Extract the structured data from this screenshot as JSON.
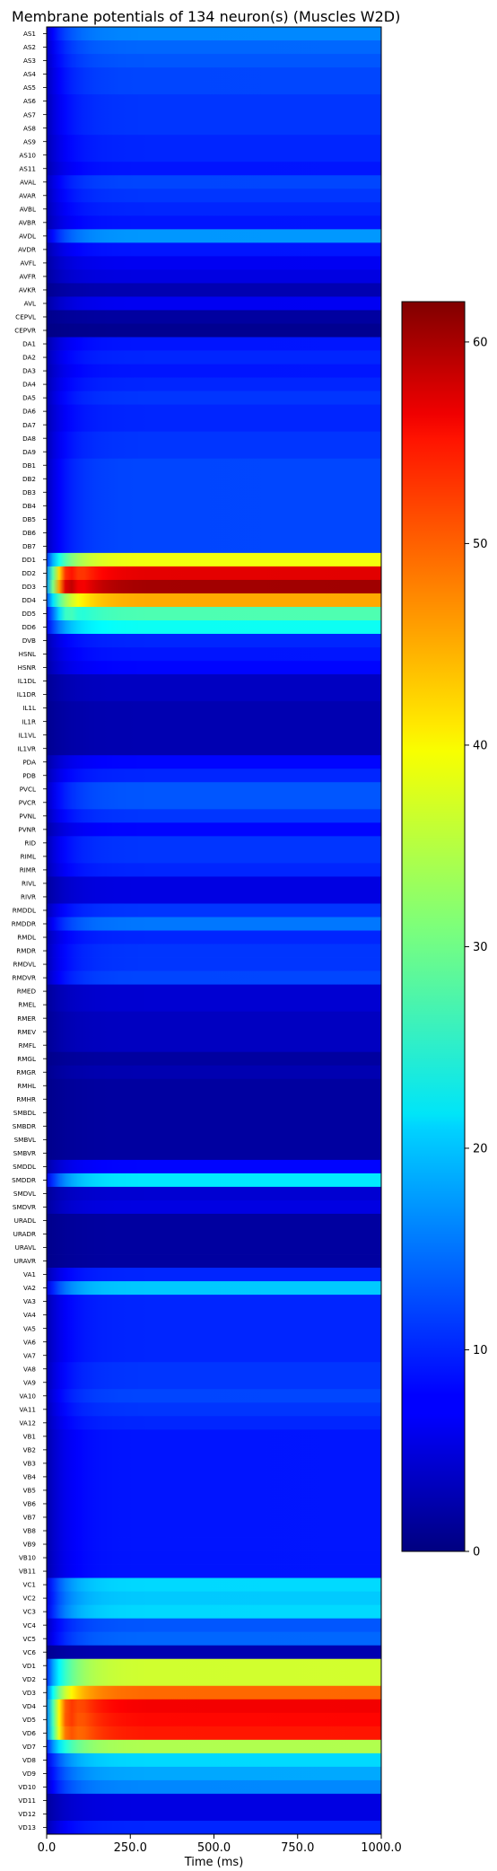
{
  "chart_data": {
    "type": "heatmap",
    "title": "Membrane potentials of 134 neuron(s) (Muscles W2D)",
    "xlabel": "Time (ms)",
    "ylabel": "",
    "xlim": [
      0,
      1000
    ],
    "x_ticks": [
      "0.0",
      "250.0",
      "500.0",
      "750.0",
      "1000.0"
    ],
    "colormap": "jet",
    "colorbar": {
      "min": 0,
      "max": 62,
      "ticks": [
        "0",
        "10",
        "20",
        "30",
        "40",
        "50",
        "60"
      ],
      "placement": "right"
    },
    "neurons": [
      "AS1",
      "AS2",
      "AS3",
      "AS4",
      "AS5",
      "AS6",
      "AS7",
      "AS8",
      "AS9",
      "AS10",
      "AS11",
      "AVAL",
      "AVAR",
      "AVBL",
      "AVBR",
      "AVDL",
      "AVDR",
      "AVFL",
      "AVFR",
      "AVKR",
      "AVL",
      "CEPVL",
      "CEPVR",
      "DA1",
      "DA2",
      "DA3",
      "DA4",
      "DA5",
      "DA6",
      "DA7",
      "DA8",
      "DA9",
      "DB1",
      "DB2",
      "DB3",
      "DB4",
      "DB5",
      "DB6",
      "DB7",
      "DD1",
      "DD2",
      "DD3",
      "DD4",
      "DD5",
      "DD6",
      "DVB",
      "HSNL",
      "HSNR",
      "IL1DL",
      "IL1DR",
      "IL1L",
      "IL1R",
      "IL1VL",
      "IL1VR",
      "PDA",
      "PDB",
      "PVCL",
      "PVCR",
      "PVNL",
      "PVNR",
      "RID",
      "RIML",
      "RIMR",
      "RIVL",
      "RIVR",
      "RMDDL",
      "RMDDR",
      "RMDL",
      "RMDR",
      "RMDVL",
      "RMDVR",
      "RMED",
      "RMEL",
      "RMER",
      "RMEV",
      "RMFL",
      "RMGL",
      "RMGR",
      "RMHL",
      "RMHR",
      "SMBDL",
      "SMBDR",
      "SMBVL",
      "SMBVR",
      "SMDDL",
      "SMDDR",
      "SMDVL",
      "SMDVR",
      "URADL",
      "URADR",
      "URAVL",
      "URAVR",
      "VA1",
      "VA2",
      "VA3",
      "VA4",
      "VA5",
      "VA6",
      "VA7",
      "VA8",
      "VA9",
      "VA10",
      "VA11",
      "VA12",
      "VB1",
      "VB2",
      "VB3",
      "VB4",
      "VB5",
      "VB6",
      "VB7",
      "VB8",
      "VB9",
      "VB10",
      "VB11",
      "VC1",
      "VC2",
      "VC3",
      "VC4",
      "VC5",
      "VC6",
      "VD1",
      "VD2",
      "VD3",
      "VD4",
      "VD5",
      "VD6",
      "VD7",
      "VD8",
      "VD9",
      "VD10",
      "VD11",
      "VD12",
      "VD13"
    ],
    "steady_values": [
      16,
      14,
      13,
      12,
      12,
      11,
      11,
      11,
      10,
      10,
      9,
      12,
      11,
      10,
      9,
      17,
      9,
      7,
      6,
      3,
      7,
      2,
      1,
      9,
      10,
      9,
      10,
      11,
      10,
      10,
      11,
      11,
      12,
      12,
      12,
      12,
      12,
      12,
      12,
      38,
      56,
      60,
      44,
      28,
      24,
      10,
      9,
      8,
      4,
      4,
      3,
      3,
      3,
      3,
      8,
      10,
      13,
      13,
      11,
      8,
      11,
      11,
      10,
      6,
      6,
      11,
      15,
      10,
      11,
      11,
      12,
      5,
      5,
      4,
      4,
      4,
      2,
      3,
      2,
      2,
      2,
      2,
      2,
      2,
      8,
      22,
      5,
      6,
      2,
      2,
      2,
      2,
      10,
      20,
      10,
      10,
      10,
      10,
      10,
      11,
      11,
      12,
      11,
      10,
      9,
      9,
      9,
      9,
      9,
      9,
      9,
      9,
      9,
      9,
      9,
      21,
      20,
      21,
      13,
      14,
      3,
      36,
      36,
      48,
      55,
      54,
      53,
      34,
      21,
      18,
      16,
      6,
      6,
      10
    ],
    "transient_peaks": [
      0,
      0,
      0,
      0,
      0,
      0,
      0,
      0,
      0,
      0,
      0,
      0,
      0,
      0,
      0,
      0,
      0,
      0,
      0,
      0,
      0,
      0,
      0,
      0,
      0,
      0,
      0,
      0,
      0,
      0,
      0,
      0,
      0,
      0,
      0,
      0,
      0,
      0,
      0,
      0,
      10,
      12,
      0,
      6,
      0,
      0,
      0,
      0,
      0,
      0,
      0,
      0,
      0,
      0,
      0,
      0,
      0,
      0,
      0,
      0,
      0,
      0,
      0,
      0,
      0,
      0,
      0,
      0,
      0,
      0,
      0,
      0,
      0,
      0,
      0,
      0,
      0,
      0,
      0,
      0,
      0,
      0,
      0,
      0,
      0,
      0,
      0,
      0,
      0,
      0,
      0,
      0,
      0,
      0,
      0,
      0,
      0,
      0,
      0,
      0,
      0,
      0,
      0,
      0,
      0,
      0,
      0,
      0,
      0,
      0,
      0,
      0,
      0,
      0,
      0,
      0,
      0,
      0,
      0,
      0,
      0,
      0,
      0,
      0,
      8,
      9,
      8,
      0,
      0,
      0,
      0,
      0,
      0,
      0
    ]
  }
}
